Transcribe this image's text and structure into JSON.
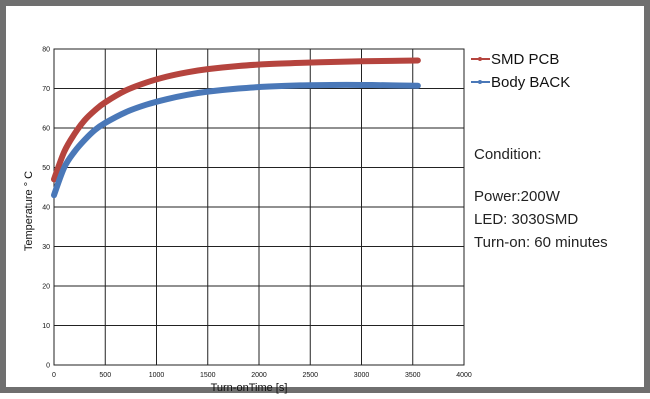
{
  "chart_data": {
    "type": "line",
    "xlabel": "Turn-onTime [s]",
    "ylabel": "Temperature ° C",
    "xlim": [
      0,
      4000
    ],
    "ylim": [
      0,
      80
    ],
    "xticks": [
      "0",
      "500",
      "1000",
      "1500",
      "2000",
      "2500",
      "3000",
      "3500",
      "4000"
    ],
    "yticks": [
      "0",
      "10",
      "20",
      "30",
      "40",
      "50",
      "60",
      "70",
      "80"
    ],
    "grid": true,
    "legend_position": "right",
    "series": [
      {
        "name": "SMD PCB",
        "color": "#b5443e",
        "x": [
          0,
          100,
          200,
          300,
          400,
          500,
          700,
          900,
          1100,
          1300,
          1500,
          1800,
          2100,
          2400,
          2700,
          3000,
          3300,
          3550
        ],
        "values": [
          47,
          54,
          58.5,
          62,
          64.5,
          66.5,
          69.5,
          71.5,
          73,
          74.1,
          74.9,
          75.7,
          76.2,
          76.5,
          76.7,
          76.9,
          77.0,
          77.1
        ]
      },
      {
        "name": "Body BACK",
        "color": "#4a78b8",
        "x": [
          0,
          100,
          200,
          300,
          400,
          500,
          700,
          900,
          1100,
          1300,
          1500,
          1800,
          2100,
          2400,
          2700,
          3000,
          3300,
          3550
        ],
        "values": [
          43,
          50,
          54,
          57,
          59.5,
          61.3,
          64,
          65.9,
          67.3,
          68.4,
          69.2,
          70.0,
          70.5,
          70.8,
          70.9,
          70.9,
          70.8,
          70.7
        ]
      }
    ]
  },
  "condition": {
    "heading": "Condition:",
    "lines": [
      "Power:200W",
      "LED: 3030SMD",
      "Turn-on: 60 minutes"
    ]
  }
}
